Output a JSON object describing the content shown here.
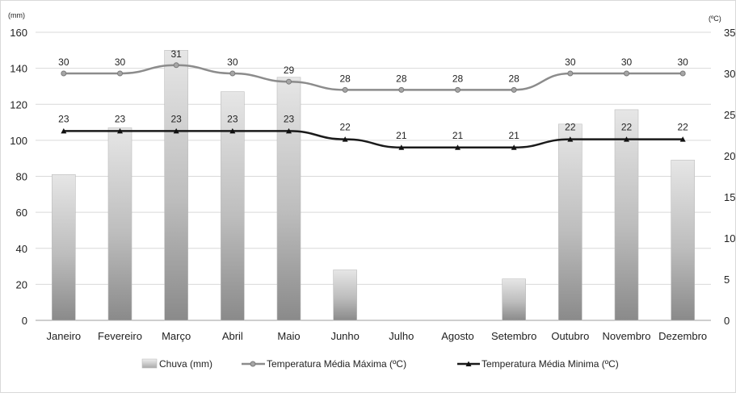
{
  "chart_data": {
    "type": "bar",
    "categories": [
      "Janeiro",
      "Fevereiro",
      "Março",
      "Abril",
      "Maio",
      "Junho",
      "Julho",
      "Agosto",
      "Setembro",
      "Outubro",
      "Novembro",
      "Dezembro"
    ],
    "left_axis": {
      "unit": "(mm)",
      "ylim": [
        0,
        160
      ],
      "ticks": [
        0,
        20,
        40,
        60,
        80,
        100,
        120,
        140,
        160
      ]
    },
    "right_axis": {
      "unit": "(ºC)",
      "ylim": [
        0,
        35
      ],
      "ticks": [
        0,
        5,
        10,
        15,
        20,
        25,
        30,
        35
      ]
    },
    "series": [
      {
        "name": "Chuva (mm)",
        "type": "bar",
        "axis": "left",
        "color": "#b0b0b0",
        "values": [
          81,
          107,
          150,
          127,
          135,
          28,
          0,
          0,
          23,
          109,
          117,
          89
        ]
      },
      {
        "name": "Temperatura Média Máxima (ºC)",
        "type": "line",
        "axis": "right",
        "color": "#8c8c8c",
        "values": [
          30,
          30,
          31,
          30,
          29,
          28,
          28,
          28,
          28,
          30,
          30,
          30
        ]
      },
      {
        "name": "Temperatura Média Minima (ºC)",
        "type": "line",
        "axis": "right",
        "color": "#1a1a1a",
        "values": [
          23,
          23,
          23,
          23,
          23,
          22,
          21,
          21,
          21,
          22,
          22,
          22
        ]
      }
    ],
    "legend": {
      "position": "bottom"
    },
    "grid": true
  }
}
